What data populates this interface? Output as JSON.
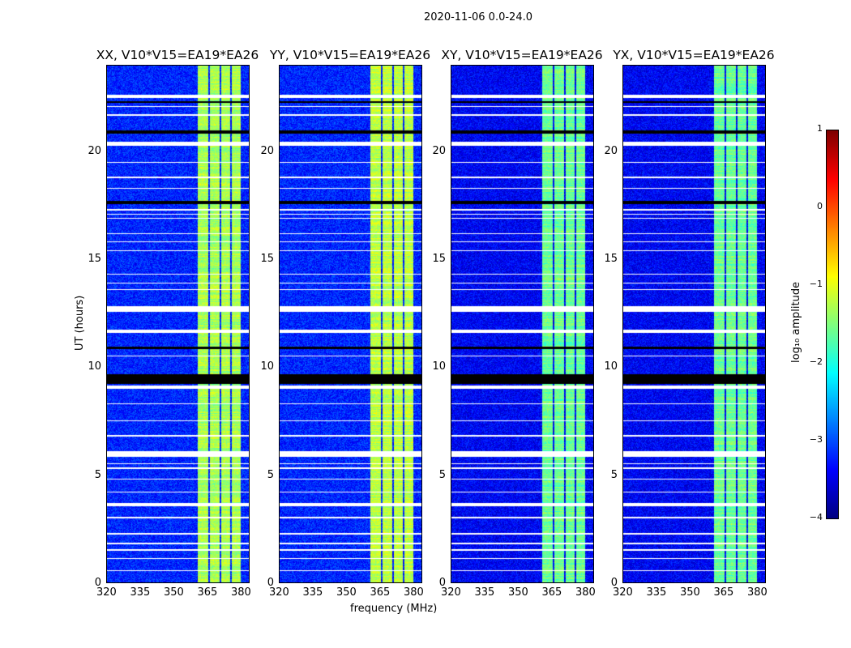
{
  "suptitle": "2020-11-06 0.0-24.0",
  "chart_data": {
    "type": "heatmap",
    "xlabel": "frequency (MHz)",
    "ylabel": "UT (hours)",
    "xlim": [
      320,
      384
    ],
    "ylim": [
      0,
      24
    ],
    "xticks": [
      "320",
      "335",
      "350",
      "365",
      "380"
    ],
    "xtick_values": [
      320,
      335,
      350,
      365,
      380
    ],
    "yticks": [
      "0",
      "5",
      "10",
      "15",
      "20"
    ],
    "ytick_values": [
      0,
      5,
      10,
      15,
      20
    ],
    "panels": [
      {
        "title": "XX, V10*V15=EA19*EA26",
        "background_log": -3.2,
        "band_log": -1.3
      },
      {
        "title": "YY, V10*V15=EA19*EA26",
        "background_log": -3.2,
        "band_log": -1.2
      },
      {
        "title": "XY, V10*V15=EA19*EA26",
        "background_log": -3.4,
        "band_log": -1.6
      },
      {
        "title": "YX, V10*V15=EA19*EA26",
        "background_log": -3.4,
        "band_log": -1.6
      }
    ],
    "bright_bands_mhz": [
      [
        360.7,
        365.5
      ],
      [
        366.2,
        370.5
      ],
      [
        371.3,
        375.3
      ],
      [
        376,
        380
      ]
    ],
    "flagged_white_hours": [
      [
        22.5,
        22.65
      ],
      [
        22.1,
        22.15
      ],
      [
        21.7,
        21.75
      ],
      [
        20.3,
        20.5
      ],
      [
        19.5,
        19.55
      ],
      [
        18.8,
        18.85
      ],
      [
        18.3,
        18.35
      ],
      [
        17.3,
        17.35
      ],
      [
        17.1,
        17.15
      ],
      [
        16.9,
        16.95
      ],
      [
        16.2,
        16.25
      ],
      [
        15.8,
        15.85
      ],
      [
        15.4,
        15.45
      ],
      [
        14.3,
        14.35
      ],
      [
        13.9,
        13.95
      ],
      [
        13.6,
        13.65
      ],
      [
        12.6,
        12.85
      ],
      [
        11.6,
        11.75
      ],
      [
        10.5,
        10.55
      ],
      [
        9.0,
        9.15
      ],
      [
        8.3,
        8.35
      ],
      [
        7.5,
        7.55
      ],
      [
        6.8,
        6.85
      ],
      [
        5.85,
        6.1
      ],
      [
        5.5,
        5.55
      ],
      [
        5.3,
        5.35
      ],
      [
        4.8,
        4.85
      ],
      [
        4.2,
        4.25
      ],
      [
        3.55,
        3.7
      ],
      [
        3.0,
        3.05
      ],
      [
        2.25,
        2.3
      ],
      [
        1.8,
        1.85
      ],
      [
        1.5,
        1.55
      ],
      [
        1.1,
        1.15
      ],
      [
        0.55,
        0.6
      ]
    ],
    "flagged_black_hours": [
      [
        20.85,
        21.0
      ],
      [
        22.3,
        22.35
      ],
      [
        17.6,
        17.75
      ],
      [
        10.85,
        10.95
      ],
      [
        9.25,
        9.7
      ]
    ],
    "colorbar": {
      "label": "log₁₀ amplitude",
      "min": -4,
      "max": 1,
      "ticks": [
        "1",
        "0",
        "−1",
        "−2",
        "−3",
        "−4"
      ],
      "tick_values": [
        1,
        0,
        -1,
        -2,
        -3,
        -4
      ],
      "colormap": "jet"
    }
  }
}
